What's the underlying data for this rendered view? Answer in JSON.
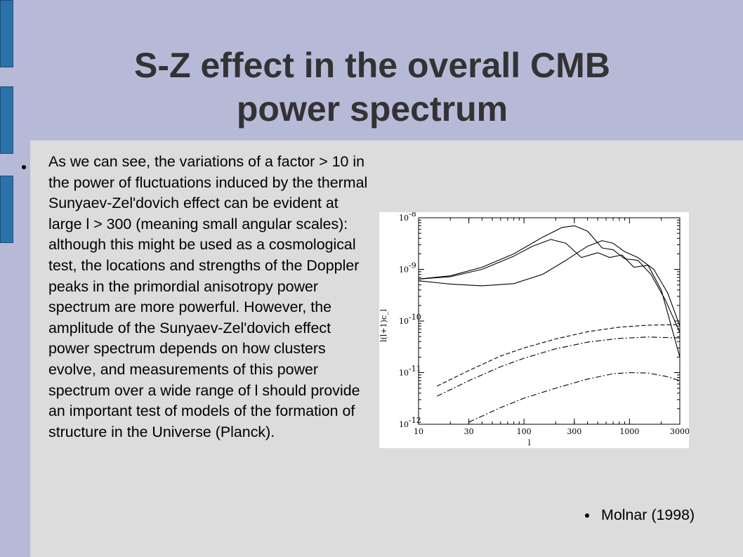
{
  "slide": {
    "title_line1": "S-Z effect in the overall CMB",
    "title_line2": "power spectrum",
    "body_text": "As we can see, the variations of a factor > 10 in the power of fluctuations induced by the thermal Sunyaev-Zel'dovich effect can be evident at large l > 300 (meaning small angular scales): although this might be used as a cosmological test, the locations and strengths of the Doppler peaks in the primordial anisotropy power spectrum are more powerful. However, the amplitude of the Sunyaev-Zel'dovich effect power spectrum depends on how clusters evolve, and measurements of this power spectrum over a wide range of l should provide an important test of models of the formation of structure in the Universe (Planck).",
    "caption": "Molnar (1998)"
  },
  "colors": {
    "header_band": "#b7bad7",
    "tab": "#2a73a8",
    "background": "#dcdcdc",
    "title_text": "#333333"
  },
  "chart_data": {
    "type": "line",
    "xlabel": "l",
    "ylabel": "l(l+1)c_l",
    "x_scale": "log",
    "y_scale": "log",
    "xlim": [
      10,
      3000
    ],
    "ylim": [
      1e-12,
      1e-08
    ],
    "x_ticks": [
      "10",
      "30",
      "100",
      "300",
      "1000",
      "3000"
    ],
    "y_tick_bases": [
      "10",
      "10",
      "10",
      "10",
      "10"
    ],
    "y_tick_exps": [
      "-8",
      "-9",
      "-10",
      "-11",
      "-12"
    ],
    "series": [
      {
        "style": "solid",
        "x": [
          10,
          20,
          40,
          80,
          150,
          230,
          300,
          400,
          550,
          700,
          900,
          1200,
          1600,
          2200,
          3000
        ],
        "y": [
          6.5e-10,
          7.5e-10,
          1.1e-09,
          2e-09,
          4.2e-09,
          6.5e-09,
          7e-09,
          5.5e-09,
          2.6e-09,
          2.4e-09,
          1.6e-09,
          1.5e-09,
          8e-10,
          2.5e-10,
          6e-11
        ]
      },
      {
        "style": "solid",
        "x": [
          10,
          20,
          40,
          80,
          120,
          180,
          250,
          350,
          500,
          650,
          850,
          1100,
          1500,
          2000,
          3000
        ],
        "y": [
          6.5e-10,
          7.2e-10,
          1e-09,
          1.8e-09,
          2.8e-09,
          3.8e-09,
          3.2e-09,
          1.7e-09,
          2.1e-09,
          1.7e-09,
          1.9e-09,
          1.1e-09,
          1.2e-09,
          4e-10,
          2e-11
        ]
      },
      {
        "style": "solid",
        "x": [
          10,
          20,
          40,
          80,
          150,
          250,
          400,
          550,
          700,
          900,
          1200,
          1700,
          2300,
          3000
        ],
        "y": [
          6e-10,
          5.2e-10,
          4.8e-10,
          5.3e-10,
          8e-10,
          1.5e-09,
          2.8e-09,
          3.6e-09,
          3.2e-09,
          2.2e-09,
          1.7e-09,
          1e-09,
          3.5e-10,
          8e-11
        ]
      },
      {
        "style": "dashed",
        "x": [
          15,
          30,
          60,
          100,
          200,
          400,
          800,
          1500,
          3000
        ],
        "y": [
          5.5e-12,
          1.1e-11,
          2.1e-11,
          3e-11,
          4.5e-11,
          6.2e-11,
          7.6e-11,
          8.3e-11,
          8.5e-11
        ]
      },
      {
        "style": "dashdot",
        "x": [
          15,
          30,
          60,
          100,
          200,
          400,
          800,
          1500,
          3000
        ],
        "y": [
          3.5e-12,
          7e-12,
          1.3e-11,
          1.9e-11,
          2.9e-11,
          3.9e-11,
          4.6e-11,
          4.9e-11,
          4.7e-11
        ]
      },
      {
        "style": "dashdot",
        "x": [
          30,
          60,
          100,
          200,
          400,
          700,
          1000,
          1500,
          2200,
          3000
        ],
        "y": [
          1.1e-12,
          2.1e-12,
          3.2e-12,
          5e-12,
          7.5e-12,
          9.5e-12,
          1e-11,
          9.8e-12,
          8.5e-12,
          7e-12
        ]
      }
    ]
  }
}
